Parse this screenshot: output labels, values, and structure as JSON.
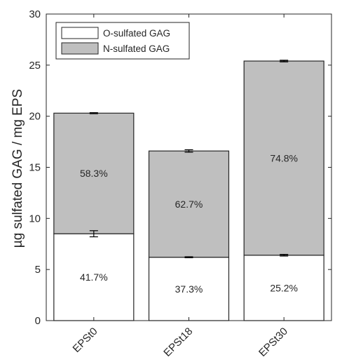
{
  "chart_data": {
    "type": "bar",
    "stacked": true,
    "categories": [
      "EPSt0",
      "EPSt18",
      "EPSt30"
    ],
    "series": [
      {
        "name": "O-sulfated GAG",
        "color": "#ffffff",
        "values": [
          8.5,
          6.2,
          6.4
        ],
        "errors": [
          0.3,
          0.05,
          0.08
        ],
        "labels": [
          "41.7%",
          "37.3%",
          "25.2%"
        ]
      },
      {
        "name": "N-sulfated GAG",
        "color": "#bfbfbf",
        "values": [
          11.8,
          10.4,
          19.0
        ],
        "errors": [
          0.05,
          0.12,
          0.08
        ],
        "labels": [
          "58.3%",
          "62.7%",
          "74.8%"
        ]
      }
    ],
    "ylabel": "µg sulfated GAG / mg EPS",
    "xlabel": "",
    "ylim": [
      0,
      30
    ],
    "yticks": [
      0,
      5,
      10,
      15,
      20,
      25,
      30
    ],
    "grid": false,
    "legend_position": "top-left",
    "xtick_rotation": -45
  }
}
